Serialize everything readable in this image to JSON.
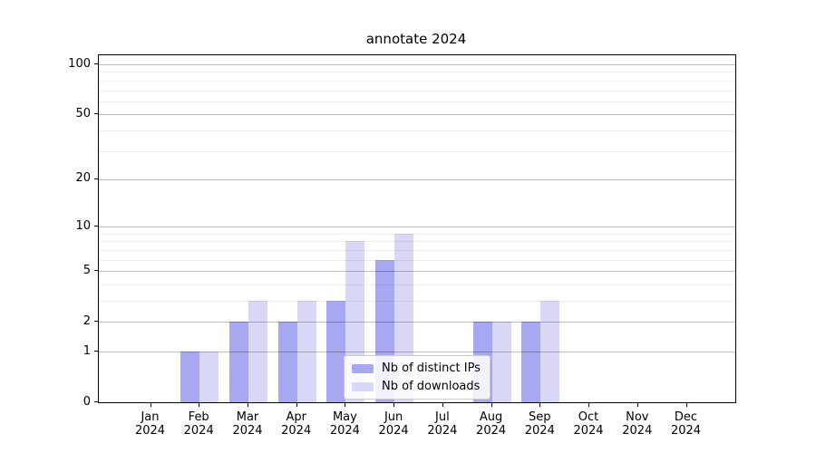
{
  "chart_data": {
    "type": "bar",
    "title": "annotate 2024",
    "categories": [
      "Jan 2024",
      "Feb 2024",
      "Mar 2024",
      "Apr 2024",
      "May 2024",
      "Jun 2024",
      "Jul 2024",
      "Aug 2024",
      "Sep 2024",
      "Oct 2024",
      "Nov 2024",
      "Dec 2024"
    ],
    "series": [
      {
        "name": "Nb of distinct IPs",
        "color": "#a7a7f2",
        "values": [
          0,
          1,
          2,
          2,
          3,
          6,
          0,
          2,
          2,
          0,
          0,
          0
        ]
      },
      {
        "name": "Nb of downloads",
        "color": "#d9d9f7",
        "values": [
          0,
          1,
          3,
          3,
          8,
          9,
          0,
          2,
          3,
          0,
          0,
          0
        ]
      }
    ],
    "xlabel": "",
    "ylabel": "",
    "y_scale": "log1p",
    "ylim": [
      0,
      113
    ],
    "y_ticks": [
      0,
      1,
      2,
      5,
      10,
      20,
      50,
      100
    ],
    "y_minor_gridlines": [
      3,
      4,
      6,
      7,
      8,
      9,
      30,
      40,
      60,
      70,
      80,
      90
    ],
    "grid": "horizontal, gridlines drawn over bars",
    "legend_position": "inside plot, lower center"
  }
}
